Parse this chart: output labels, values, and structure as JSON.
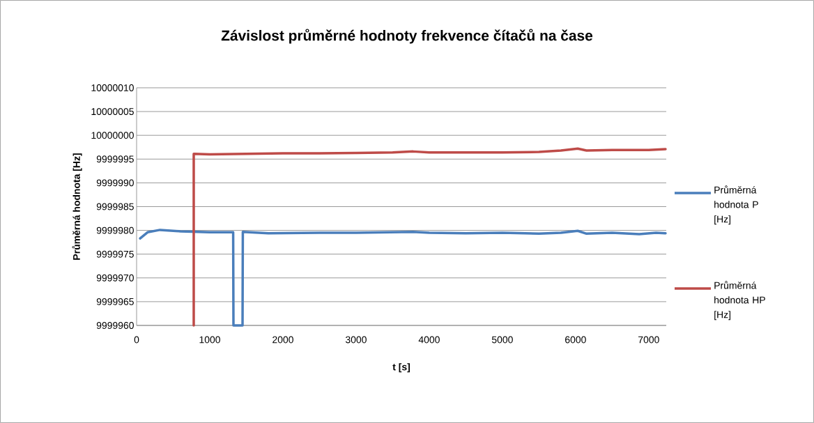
{
  "chart_data": {
    "type": "line",
    "title": "Závislost průměrné hodnoty frekvence čítačů na čase",
    "xlabel": "t [s]",
    "ylabel": "Průměrná hodnota [Hz]",
    "xlim": [
      0,
      7240
    ],
    "xticks": [
      0,
      1000,
      2000,
      3000,
      4000,
      5000,
      6000,
      7000
    ],
    "ylim": [
      9999960,
      10000010
    ],
    "yticks": [
      9999960,
      9999965,
      9999970,
      9999975,
      9999980,
      9999985,
      9999990,
      9999995,
      10000000,
      10000005,
      10000010
    ],
    "grid": "y",
    "legend": "right",
    "marker": "none",
    "line_style": "solid",
    "series": [
      {
        "name": "Průměrná hodnota P [Hz]",
        "color": "#4a7ebb",
        "x": [
          48,
          150,
          320,
          600,
          1000,
          1320,
          1324,
          1448,
          1452,
          1800,
          2500,
          3000,
          3780,
          4000,
          4500,
          5000,
          5500,
          5800,
          6030,
          6150,
          6500,
          6870,
          7100,
          7230
        ],
        "values": [
          9999978.3,
          9999979.6,
          9999980.1,
          9999979.8,
          9999979.6,
          9999979.6,
          9999960,
          9999960,
          9999979.7,
          9999979.4,
          9999979.5,
          9999979.5,
          9999979.7,
          9999979.5,
          9999979.4,
          9999979.5,
          9999979.3,
          9999979.5,
          9999979.9,
          9999979.3,
          9999979.5,
          9999979.2,
          9999979.5,
          9999979.4
        ]
      },
      {
        "name": "Průměrná hodnota HP [Hz]",
        "color": "#be4b48",
        "x": [
          781,
          781,
          1000,
          1500,
          2000,
          2500,
          3000,
          3500,
          3780,
          4000,
          4500,
          5000,
          5500,
          5800,
          6030,
          6150,
          6500,
          7000,
          7230
        ],
        "values": [
          9999960,
          9999996.1,
          9999996.0,
          9999996.1,
          9999996.2,
          9999996.2,
          9999996.3,
          9999996.4,
          9999996.6,
          9999996.4,
          9999996.4,
          9999996.4,
          9999996.5,
          9999996.8,
          9999997.2,
          9999996.8,
          9999996.9,
          9999996.9,
          9999997.1
        ]
      }
    ]
  }
}
